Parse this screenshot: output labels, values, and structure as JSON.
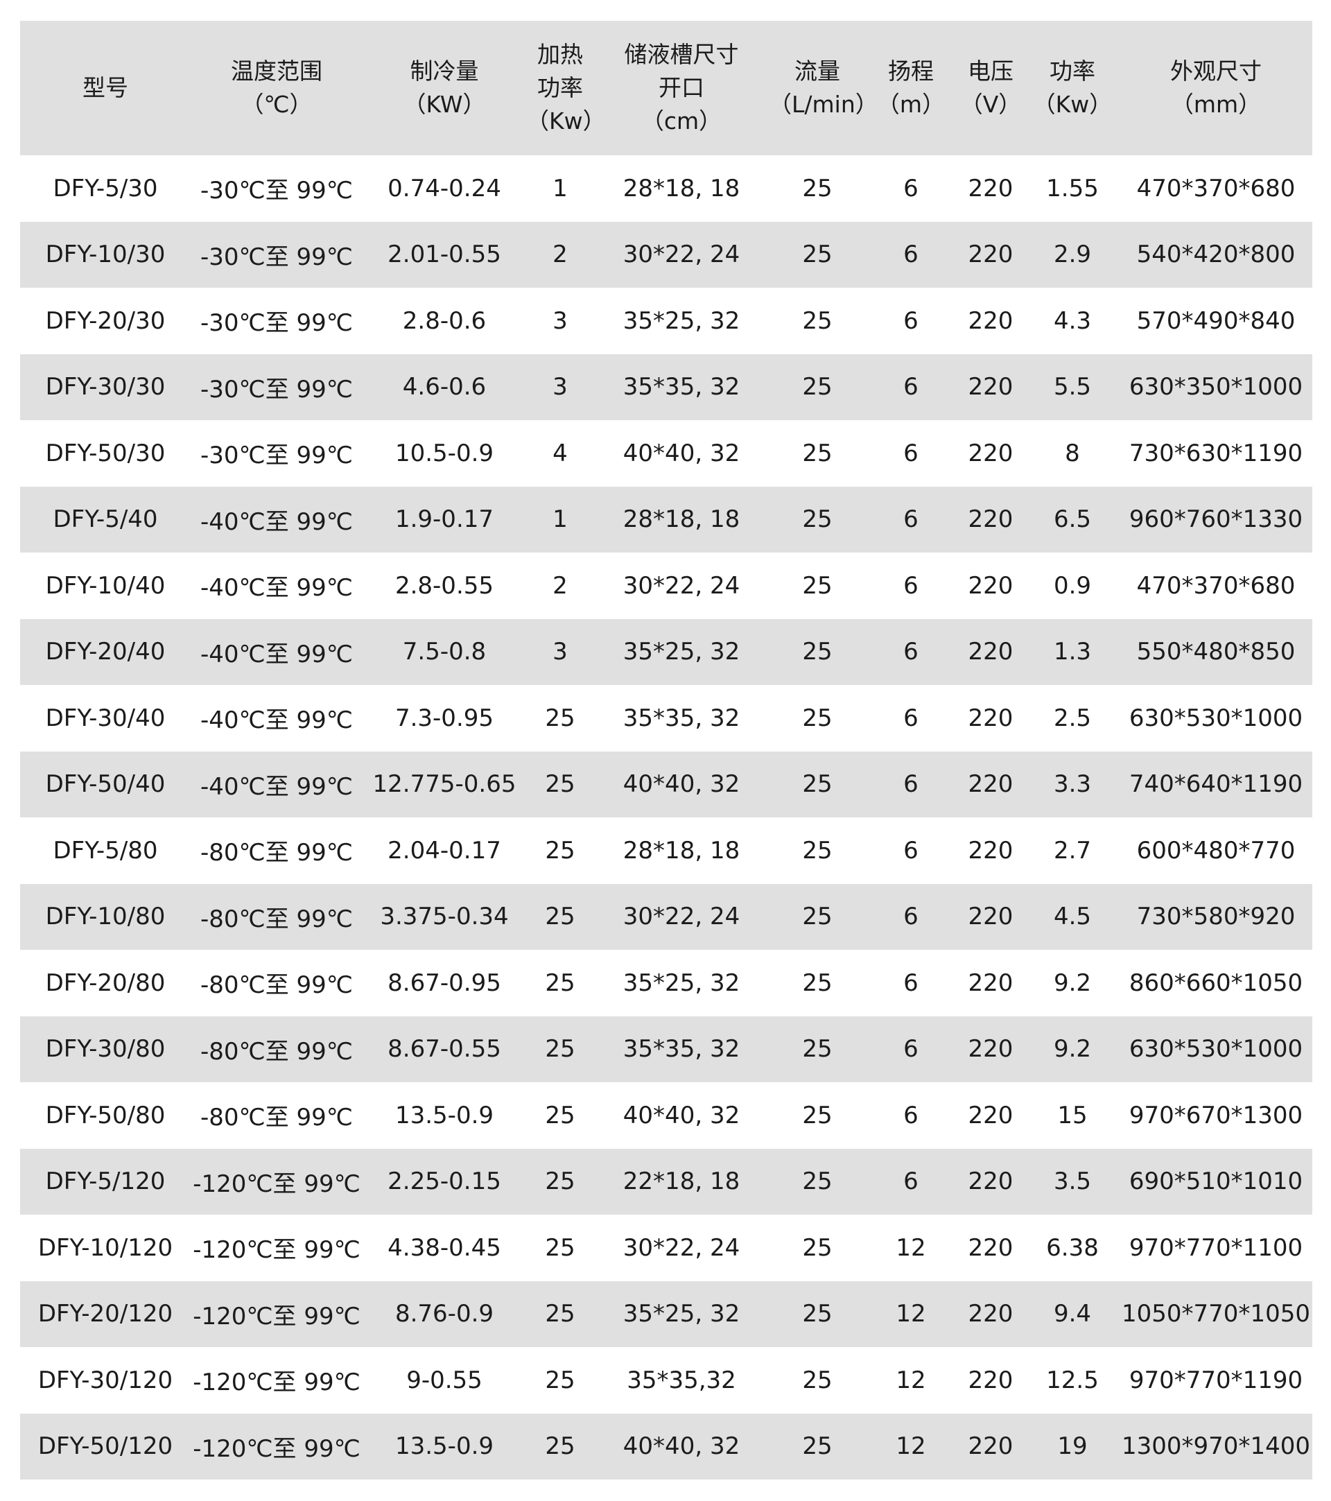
{
  "headers": [
    {
      "line1": "型号",
      "line2": "",
      "line3": ""
    },
    {
      "line1": "温度范围",
      "line2": "（℃）",
      "line3": ""
    },
    {
      "line1": "制冷量",
      "line2": "（KW）",
      "line3": ""
    },
    {
      "line1": "加热",
      "line2": "功率",
      "line3": "（Kw）"
    },
    {
      "line1": "储液槽尺寸",
      "line2": "开口",
      "line3": "（cm）"
    },
    {
      "line1": "流量",
      "line2": "（L/min）",
      "line3": ""
    },
    {
      "line1": "扬程",
      "line2": "（m）",
      "line3": ""
    },
    {
      "line1": "电压",
      "line2": "（V）",
      "line3": ""
    },
    {
      "line1": "功率",
      "line2": "（Kw）",
      "line3": ""
    },
    {
      "line1": "外观尺寸",
      "line2": "（mm）",
      "line3": ""
    }
  ],
  "rows": [
    [
      "DFY-5/30",
      "-30℃至 99℃",
      "0.74-0.24",
      "1",
      "28*18, 18",
      "25",
      "6",
      "220",
      "1.55",
      "470*370*680"
    ],
    [
      "DFY-10/30",
      "-30℃至 99℃",
      "2.01-0.55",
      "2",
      "30*22, 24",
      "25",
      "6",
      "220",
      "2.9",
      "540*420*800"
    ],
    [
      "DFY-20/30",
      "-30℃至 99℃",
      "2.8-0.6",
      "3",
      "35*25, 32",
      "25",
      "6",
      "220",
      "4.3",
      "570*490*840"
    ],
    [
      "DFY-30/30",
      "-30℃至 99℃",
      "4.6-0.6",
      "3",
      "35*35, 32",
      "25",
      "6",
      "220",
      "5.5",
      "630*350*1000"
    ],
    [
      "DFY-50/30",
      "-30℃至 99℃",
      "10.5-0.9",
      "4",
      "40*40, 32",
      "25",
      "6",
      "220",
      "8",
      "730*630*1190"
    ],
    [
      "DFY-5/40",
      "-40℃至 99℃",
      "1.9-0.17",
      "1",
      "28*18, 18",
      "25",
      "6",
      "220",
      "6.5",
      "960*760*1330"
    ],
    [
      "DFY-10/40",
      "-40℃至 99℃",
      "2.8-0.55",
      "2",
      "30*22, 24",
      "25",
      "6",
      "220",
      "0.9",
      "470*370*680"
    ],
    [
      "DFY-20/40",
      "-40℃至 99℃",
      "7.5-0.8",
      "3",
      "35*25, 32",
      "25",
      "6",
      "220",
      "1.3",
      "550*480*850"
    ],
    [
      "DFY-30/40",
      "-40℃至 99℃",
      "7.3-0.95",
      "25",
      "35*35, 32",
      "25",
      "6",
      "220",
      "2.5",
      "630*530*1000"
    ],
    [
      "DFY-50/40",
      "-40℃至 99℃",
      "12.775-0.65",
      "25",
      "40*40, 32",
      "25",
      "6",
      "220",
      "3.3",
      "740*640*1190"
    ],
    [
      "DFY-5/80",
      "-80℃至 99℃",
      "2.04-0.17",
      "25",
      "28*18, 18",
      "25",
      "6",
      "220",
      "2.7",
      "600*480*770"
    ],
    [
      "DFY-10/80",
      "-80℃至 99℃",
      "3.375-0.34",
      "25",
      "30*22, 24",
      "25",
      "6",
      "220",
      "4.5",
      "730*580*920"
    ],
    [
      "DFY-20/80",
      "-80℃至 99℃",
      "8.67-0.95",
      "25",
      "35*25, 32",
      "25",
      "6",
      "220",
      "9.2",
      "860*660*1050"
    ],
    [
      "DFY-30/80",
      "-80℃至 99℃",
      "8.67-0.55",
      "25",
      "35*35, 32",
      "25",
      "6",
      "220",
      "9.2",
      "630*530*1000"
    ],
    [
      "DFY-50/80",
      "-80℃至 99℃",
      "13.5-0.9",
      "25",
      "40*40, 32",
      "25",
      "6",
      "220",
      "15",
      "970*670*1300"
    ],
    [
      "DFY-5/120",
      "-120℃至 99℃",
      "2.25-0.15",
      "25",
      "22*18, 18",
      "25",
      "6",
      "220",
      "3.5",
      "690*510*1010"
    ],
    [
      "DFY-10/120",
      "-120℃至 99℃",
      "4.38-0.45",
      "25",
      "30*22, 24",
      "25",
      "12",
      "220",
      "6.38",
      "970*770*1100"
    ],
    [
      "DFY-20/120",
      "-120℃至 99℃",
      "8.76-0.9",
      "25",
      "35*25, 32",
      "25",
      "12",
      "220",
      "9.4",
      "1050*770*1050"
    ],
    [
      "DFY-30/120",
      "-120℃至 99℃",
      "9-0.55",
      "25",
      "35*35,32",
      "25",
      "12",
      "220",
      "12.5",
      "970*770*1190"
    ],
    [
      "DFY-50/120",
      "-120℃至 99℃",
      "13.5-0.9",
      "25",
      "40*40, 32",
      "25",
      "12",
      "220",
      "19",
      "1300*970*1400"
    ]
  ],
  "colors": {
    "header_bg": "#e0e0e0",
    "stripe_bg": "#e0e0e0",
    "text": "#1b1b1b"
  }
}
